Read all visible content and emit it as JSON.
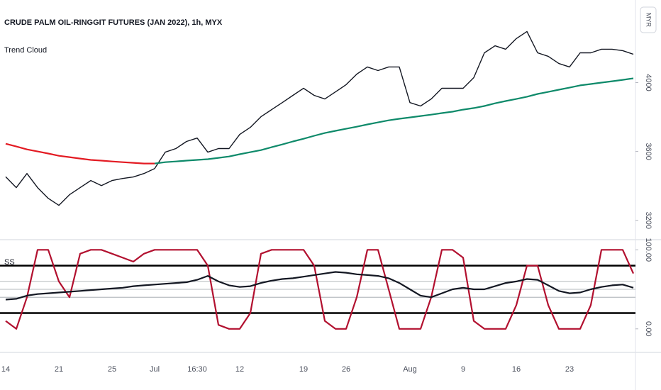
{
  "chart_data": [
    {
      "type": "line",
      "title": "CRUDE PALM OIL-RINGGIT FUTURES (JAN 2022), 1h, MYX",
      "subtitle": "Trend Cloud",
      "unit_label": "MYR",
      "categories": [
        "14",
        null,
        null,
        null,
        null,
        "21",
        null,
        null,
        null,
        null,
        "25",
        null,
        null,
        null,
        "Jul",
        null,
        null,
        null,
        "16:30",
        null,
        null,
        null,
        "12",
        null,
        null,
        null,
        null,
        null,
        "19",
        null,
        null,
        null,
        "26",
        null,
        null,
        null,
        null,
        null,
        "Aug",
        null,
        null,
        null,
        null,
        "9",
        null,
        null,
        null,
        null,
        "16",
        null,
        null,
        null,
        null,
        "23",
        null,
        null,
        null,
        null,
        null,
        null
      ],
      "ylim": [
        3100,
        4480
      ],
      "yticks": [
        3200,
        3600,
        4000
      ],
      "series": [
        {
          "color": "#131722",
          "values": [
            3453,
            3390,
            3472,
            3390,
            3328,
            3287,
            3349,
            3390,
            3431,
            3402,
            3431,
            3443,
            3452,
            3472,
            3501,
            3596,
            3617,
            3658,
            3678,
            3596,
            3617,
            3617,
            3699,
            3740,
            3802,
            3843,
            3884,
            3926,
            3967,
            3926,
            3905,
            3946,
            3988,
            4049,
            4091,
            4070,
            4091,
            4091,
            3884,
            3864,
            3905,
            3967,
            3967,
            3967,
            4029,
            4173,
            4214,
            4194,
            4256,
            4297,
            4173,
            4153,
            4111,
            4091,
            4173,
            4173,
            4194,
            4194,
            4186,
            4165
          ]
        },
        {
          "color": "#e31b23",
          "values": [
            3645,
            3629,
            3612,
            3600,
            3588,
            3575,
            3567,
            3559,
            3551,
            3547,
            3542,
            3538,
            3534,
            3530,
            3530,
            null,
            null,
            null,
            null,
            null,
            null,
            null,
            null,
            null,
            null,
            null,
            null,
            null,
            null,
            null,
            null,
            null,
            null,
            null,
            null,
            null,
            null,
            null,
            null,
            null,
            null,
            null,
            null,
            null,
            null,
            null,
            null,
            null,
            null,
            null,
            null,
            null,
            null,
            null,
            null,
            null,
            null,
            null,
            null,
            null
          ]
        },
        {
          "color": "#0e8a6a",
          "values": [
            null,
            null,
            null,
            null,
            null,
            null,
            null,
            null,
            null,
            null,
            null,
            null,
            null,
            null,
            3530,
            3538,
            3542,
            3547,
            3551,
            3555,
            3563,
            3571,
            3584,
            3596,
            3608,
            3625,
            3641,
            3658,
            3674,
            3691,
            3707,
            3720,
            3732,
            3744,
            3757,
            3769,
            3781,
            3790,
            3798,
            3806,
            3814,
            3823,
            3831,
            3843,
            3852,
            3864,
            3880,
            3893,
            3905,
            3918,
            3934,
            3946,
            3959,
            3971,
            3984,
            3992,
            4000,
            4008,
            4016,
            4025
          ]
        }
      ]
    },
    {
      "type": "line",
      "title": "SS",
      "ylim": [
        -28,
        111
      ],
      "yticks": [
        {
          "value": 100,
          "label": "100.00"
        },
        {
          "value": 0,
          "label": "0.00"
        }
      ],
      "levels": [
        80,
        20
      ],
      "minor_levels": [
        60,
        50,
        40
      ],
      "series": [
        {
          "color": "#b2102f",
          "values": [
            10,
            0,
            40,
            100,
            100,
            60,
            40,
            95,
            100,
            100,
            95,
            90,
            85,
            95,
            100,
            100,
            100,
            100,
            100,
            80,
            5,
            0,
            0,
            20,
            95,
            100,
            100,
            100,
            100,
            80,
            10,
            0,
            0,
            40,
            100,
            100,
            50,
            0,
            0,
            0,
            40,
            100,
            100,
            90,
            10,
            0,
            0,
            0,
            30,
            80,
            80,
            30,
            0,
            0,
            0,
            30,
            100,
            100,
            100,
            70
          ]
        },
        {
          "color": "#131722",
          "values": [
            37,
            38,
            42,
            44,
            45,
            46,
            47,
            48,
            49,
            50,
            51,
            52,
            54,
            55,
            56,
            57,
            58,
            59,
            62,
            67,
            60,
            55,
            53,
            54,
            58,
            61,
            63,
            64,
            66,
            68,
            70,
            72,
            71,
            69,
            68,
            67,
            64,
            58,
            50,
            42,
            40,
            45,
            50,
            52,
            50,
            50,
            54,
            58,
            60,
            63,
            62,
            55,
            48,
            45,
            46,
            50,
            53,
            55,
            56,
            52
          ]
        }
      ]
    }
  ]
}
